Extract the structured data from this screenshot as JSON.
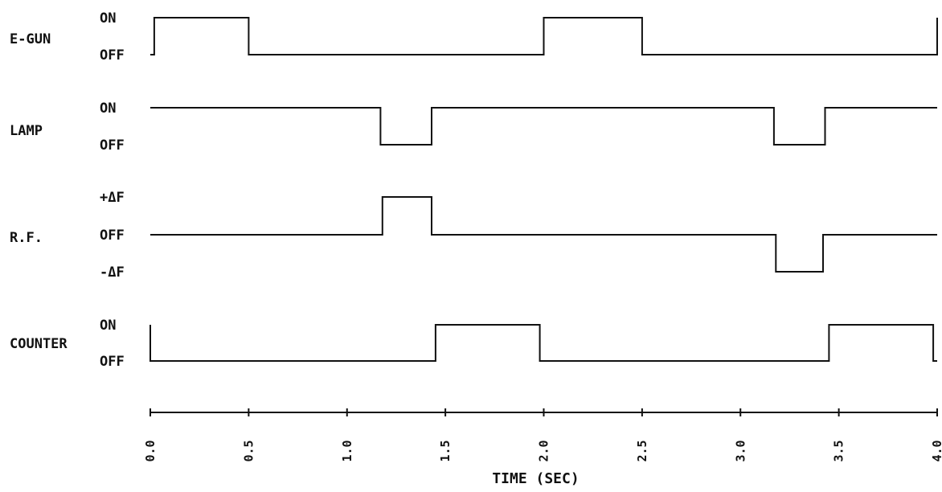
{
  "chart_data": {
    "type": "line",
    "xlabel": "TIME (SEC)",
    "xlim": [
      0.0,
      4.0
    ],
    "x_ticks": [
      "0.0",
      "0.5",
      "1.0",
      "1.5",
      "2.0",
      "2.5",
      "3.0",
      "3.5",
      "4.0"
    ],
    "series": [
      {
        "name": "E-GUN",
        "levels": [
          "ON",
          "OFF"
        ],
        "points": [
          [
            0.0,
            "OFF"
          ],
          [
            0.02,
            "OFF"
          ],
          [
            0.02,
            "ON"
          ],
          [
            0.5,
            "ON"
          ],
          [
            0.5,
            "OFF"
          ],
          [
            2.0,
            "OFF"
          ],
          [
            2.0,
            "ON"
          ],
          [
            2.5,
            "ON"
          ],
          [
            2.5,
            "OFF"
          ],
          [
            4.0,
            "OFF"
          ],
          [
            4.0,
            "ON"
          ]
        ]
      },
      {
        "name": "LAMP",
        "levels": [
          "ON",
          "OFF"
        ],
        "points": [
          [
            0.0,
            "ON"
          ],
          [
            1.17,
            "ON"
          ],
          [
            1.17,
            "OFF"
          ],
          [
            1.43,
            "OFF"
          ],
          [
            1.43,
            "ON"
          ],
          [
            3.17,
            "ON"
          ],
          [
            3.17,
            "OFF"
          ],
          [
            3.43,
            "OFF"
          ],
          [
            3.43,
            "ON"
          ],
          [
            4.0,
            "ON"
          ]
        ]
      },
      {
        "name": "R.F.",
        "levels": [
          "+ΔF",
          "OFF",
          "-ΔF"
        ],
        "points": [
          [
            0.0,
            "OFF"
          ],
          [
            1.18,
            "OFF"
          ],
          [
            1.18,
            "+ΔF"
          ],
          [
            1.43,
            "+ΔF"
          ],
          [
            1.43,
            "OFF"
          ],
          [
            3.18,
            "OFF"
          ],
          [
            3.18,
            "-ΔF"
          ],
          [
            3.42,
            "-ΔF"
          ],
          [
            3.42,
            "OFF"
          ],
          [
            4.0,
            "OFF"
          ]
        ]
      },
      {
        "name": "COUNTER",
        "levels": [
          "ON",
          "OFF"
        ],
        "points": [
          [
            0.0,
            "ON"
          ],
          [
            0.0,
            "OFF"
          ],
          [
            1.45,
            "OFF"
          ],
          [
            1.45,
            "ON"
          ],
          [
            1.98,
            "ON"
          ],
          [
            1.98,
            "OFF"
          ],
          [
            3.45,
            "OFF"
          ],
          [
            3.45,
            "ON"
          ],
          [
            3.98,
            "ON"
          ],
          [
            3.98,
            "OFF"
          ],
          [
            4.0,
            "OFF"
          ]
        ]
      }
    ]
  }
}
